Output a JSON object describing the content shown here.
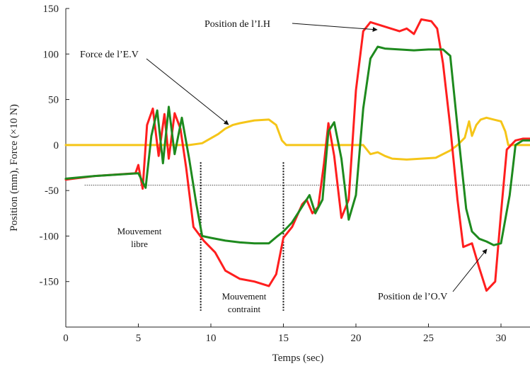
{
  "chart_data": {
    "type": "line",
    "xlabel": "Temps (sec)",
    "ylabel": "Position (mm), Force (×10 N)",
    "xlim": [
      0,
      32
    ],
    "ylim": [
      -200,
      150
    ],
    "x_ticks": [
      0,
      5,
      10,
      15,
      20,
      25,
      30
    ],
    "y_ticks": [
      150,
      100,
      50,
      0,
      -50,
      -100,
      -150
    ],
    "grid": false,
    "reference_line_y": -44,
    "phase_markers_x": [
      9.3,
      15.0
    ],
    "series": [
      {
        "color": "#ff1e1e",
        "x": [
          0,
          2,
          4.8,
          5,
          5.3,
          5.6,
          6,
          6.4,
          6.8,
          7.1,
          7.5,
          7.9,
          8.3,
          8.8,
          9.5,
          10.3,
          11,
          12,
          13,
          14,
          14.5,
          15,
          15.6,
          16.3,
          16.6,
          17,
          17.4,
          17.8,
          18.1,
          18.5,
          19,
          19.5,
          20,
          20.5,
          21,
          22,
          23,
          23.5,
          24,
          24.5,
          25.2,
          25.6,
          26,
          26.5,
          27,
          27.4,
          28,
          28.5,
          29,
          29.6,
          30,
          30.4,
          31,
          31.5,
          32
        ],
        "y": [
          -38,
          -34,
          -31,
          -22,
          -48,
          22,
          40,
          -12,
          34,
          -15,
          35,
          18,
          -25,
          -90,
          -105,
          -118,
          -138,
          -147,
          -150,
          -155,
          -142,
          -102,
          -90,
          -65,
          -60,
          -75,
          -68,
          -20,
          24,
          -12,
          -80,
          -60,
          60,
          125,
          135,
          130,
          125,
          128,
          122,
          138,
          136,
          128,
          90,
          20,
          -60,
          -112,
          -108,
          -135,
          -160,
          -150,
          -75,
          -5,
          5,
          7,
          7
        ]
      },
      {
        "color": "#1e8a1e",
        "x": [
          0,
          2,
          5,
          5.5,
          5.9,
          6.3,
          6.7,
          7.1,
          7.5,
          8.0,
          8.5,
          9,
          9.4,
          10,
          11,
          12,
          13,
          14,
          14.6,
          15,
          15.6,
          16.4,
          16.8,
          17.2,
          17.7,
          18.1,
          18.5,
          19,
          19.5,
          20,
          20.5,
          21,
          21.5,
          22,
          23,
          24,
          25,
          26,
          26.5,
          27,
          27.6,
          28,
          28.5,
          29,
          29.5,
          30,
          30.6,
          31,
          31.5,
          32
        ],
        "y": [
          -37,
          -34,
          -31,
          -47,
          10,
          38,
          -20,
          42,
          -10,
          30,
          -15,
          -65,
          -100,
          -102,
          -105,
          -107,
          -108,
          -108,
          -100,
          -95,
          -85,
          -65,
          -55,
          -75,
          -60,
          15,
          25,
          -15,
          -82,
          -55,
          40,
          95,
          108,
          106,
          105,
          104,
          105,
          105,
          98,
          20,
          -70,
          -95,
          -103,
          -106,
          -110,
          -108,
          -55,
          0,
          5,
          5
        ]
      },
      {
        "color": "#f5c518",
        "x": [
          0,
          2,
          5,
          8.5,
          9.4,
          10.5,
          11,
          11.5,
          12,
          13,
          14,
          14.5,
          14.9,
          15.2,
          17,
          18,
          19.5,
          20.5,
          21,
          21.5,
          22,
          22.5,
          23.5,
          24.5,
          25.5,
          26.5,
          27,
          27.5,
          27.8,
          28,
          28.3,
          28.6,
          29,
          29.5,
          30,
          30.3,
          30.5,
          31,
          32
        ],
        "y": [
          0,
          0,
          0,
          0,
          2,
          12,
          18,
          22,
          24,
          27,
          28,
          22,
          5,
          0,
          0,
          0,
          0,
          0,
          -10,
          -8,
          -12,
          -15,
          -16,
          -15,
          -14,
          -6,
          0,
          8,
          26,
          10,
          22,
          28,
          30,
          28,
          26,
          15,
          0,
          0,
          0
        ]
      }
    ],
    "annotations": [
      {
        "text": "Position de l’I.H",
        "target": [
          21.5,
          132
        ]
      },
      {
        "text": "Force de l’E.V",
        "target": [
          11.6,
          24
        ]
      },
      {
        "text": "Position de l’O.V",
        "target": [
          29.6,
          -111
        ]
      },
      {
        "text": "Mouvement"
      },
      {
        "text": "libre"
      },
      {
        "text": "Mouvement"
      },
      {
        "text": "contraint"
      }
    ]
  }
}
